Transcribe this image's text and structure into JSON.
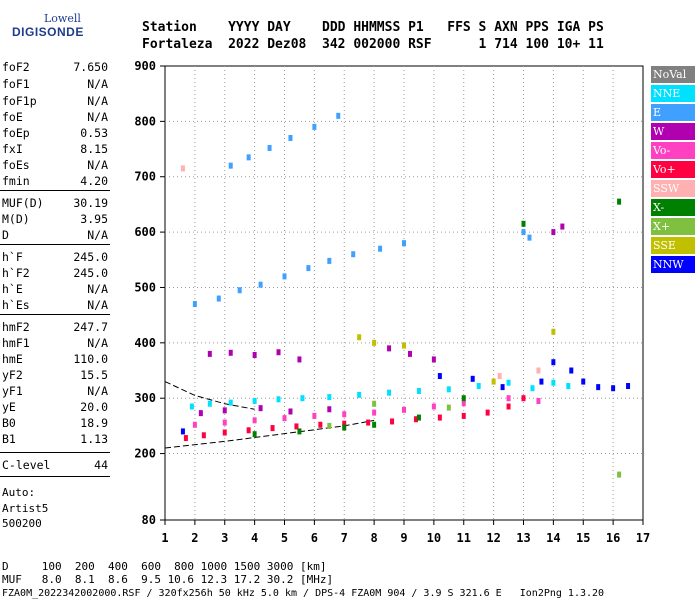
{
  "logo": {
    "top": "Lowell",
    "bottom": "DIGISONDE"
  },
  "header": {
    "line1": "Station    YYYY DAY    DDD HHMMSS P1   FFS S AXN PPS IGA PS",
    "line2": "Fortaleza  2022 Dez08  342 002000 RSF      1 714 100 10+ 11"
  },
  "side_params": [
    {
      "k": "foF2",
      "v": "7.650"
    },
    {
      "k": "foF1",
      "v": "N/A"
    },
    {
      "k": "foF1p",
      "v": "N/A"
    },
    {
      "k": "foE",
      "v": "N/A"
    },
    {
      "k": "foEp",
      "v": "0.53"
    },
    {
      "k": "fxI",
      "v": "8.15"
    },
    {
      "k": "foEs",
      "v": "N/A"
    },
    {
      "k": "fmin",
      "v": "4.20"
    },
    {
      "k": "MUF(D)",
      "v": "30.19"
    },
    {
      "k": "M(D)",
      "v": "3.95"
    },
    {
      "k": "D",
      "v": "N/A"
    },
    {
      "k": "h`F",
      "v": "245.0"
    },
    {
      "k": "h`F2",
      "v": "245.0"
    },
    {
      "k": "h`E",
      "v": "N/A"
    },
    {
      "k": "h`Es",
      "v": "N/A"
    },
    {
      "k": "hmF2",
      "v": "247.7"
    },
    {
      "k": "hmF1",
      "v": "N/A"
    },
    {
      "k": "hmE",
      "v": "110.0"
    },
    {
      "k": "yF2",
      "v": "15.5"
    },
    {
      "k": "yF1",
      "v": "N/A"
    },
    {
      "k": "yE",
      "v": "20.0"
    },
    {
      "k": "B0",
      "v": "18.9"
    },
    {
      "k": "B1",
      "v": "1.13"
    },
    {
      "k": "C-level",
      "v": "44"
    }
  ],
  "auto": {
    "l1": "Auto:",
    "l2": "Artist5",
    "l3": "500200"
  },
  "legend": [
    {
      "label": "NoVal",
      "color": "#808080"
    },
    {
      "label": "NNE",
      "color": "#00e0ff"
    },
    {
      "label": "E",
      "color": "#40a0ff"
    },
    {
      "label": "W",
      "color": "#b000b0"
    },
    {
      "label": "Vo-",
      "color": "#ff40c0"
    },
    {
      "label": "Vo+",
      "color": "#ff0040"
    },
    {
      "label": "SSW",
      "color": "#ffb0b0"
    },
    {
      "label": "X-",
      "color": "#008000"
    },
    {
      "label": "X+",
      "color": "#80c040"
    },
    {
      "label": "SSE",
      "color": "#c0c000"
    },
    {
      "label": "NNW",
      "color": "#0000ff"
    }
  ],
  "footer": {
    "line1": "D     100  200  400  600  800 1000 1500 3000 [km]",
    "line2": "MUF   8.0  8.1  8.6  9.5 10.6 12.3 17.2 30.2 [MHz]",
    "line3": "FZA0M_2022342002000.RSF / 320fx256h 50 kHz 5.0 km / DPS-4 FZA0M 904 / 3.9 S 321.6 E   Ion2Png 1.3.20"
  },
  "chart_data": {
    "type": "scatter",
    "xlim": [
      1,
      17
    ],
    "ylim": [
      80,
      900
    ],
    "xticks": [
      "1",
      "2",
      "3",
      "4",
      "5",
      "6",
      "7",
      "8",
      "9",
      "10",
      "11",
      "12",
      "13",
      "14",
      "15",
      "16",
      "17"
    ],
    "yticks": [
      "80",
      "200",
      "300",
      "400",
      "500",
      "600",
      "700",
      "800",
      "900"
    ],
    "grid": true,
    "series": [
      {
        "name": "NNE",
        "color": "#00e0ff",
        "points": [
          [
            1.9,
            285
          ],
          [
            2.5,
            290
          ],
          [
            3.2,
            292
          ],
          [
            4.0,
            295
          ],
          [
            4.8,
            298
          ],
          [
            5.6,
            300
          ],
          [
            6.5,
            302
          ],
          [
            7.5,
            306
          ],
          [
            8.5,
            310
          ],
          [
            9.5,
            313
          ],
          [
            10.5,
            316
          ],
          [
            11.5,
            322
          ],
          [
            12.5,
            328
          ],
          [
            13.3,
            318
          ],
          [
            14.0,
            328
          ],
          [
            14.5,
            322
          ]
        ]
      },
      {
        "name": "E",
        "color": "#40a0ff",
        "points": [
          [
            2.0,
            470
          ],
          [
            2.8,
            480
          ],
          [
            3.5,
            495
          ],
          [
            4.2,
            505
          ],
          [
            5.0,
            520
          ],
          [
            5.8,
            535
          ],
          [
            6.5,
            548
          ],
          [
            7.3,
            560
          ],
          [
            8.2,
            570
          ],
          [
            9.0,
            580
          ],
          [
            3.2,
            720
          ],
          [
            3.8,
            735
          ],
          [
            4.5,
            752
          ],
          [
            5.2,
            770
          ],
          [
            6.0,
            790
          ],
          [
            6.8,
            810
          ],
          [
            13.0,
            600
          ],
          [
            13.2,
            590
          ]
        ]
      },
      {
        "name": "W",
        "color": "#b000b0",
        "points": [
          [
            2.5,
            380
          ],
          [
            3.2,
            382
          ],
          [
            4.0,
            378
          ],
          [
            4.8,
            383
          ],
          [
            5.5,
            370
          ],
          [
            8.5,
            390
          ],
          [
            9.2,
            380
          ],
          [
            10.0,
            370
          ],
          [
            2.2,
            273
          ],
          [
            3.0,
            278
          ],
          [
            4.2,
            282
          ],
          [
            5.2,
            276
          ],
          [
            6.5,
            280
          ],
          [
            14.0,
            600
          ],
          [
            14.3,
            610
          ]
        ]
      },
      {
        "name": "Vo-",
        "color": "#ff40c0",
        "points": [
          [
            2.0,
            252
          ],
          [
            3.0,
            256
          ],
          [
            4.0,
            260
          ],
          [
            5.0,
            264
          ],
          [
            6.0,
            268
          ],
          [
            7.0,
            271
          ],
          [
            8.0,
            274
          ],
          [
            9.0,
            279
          ],
          [
            10.0,
            285
          ],
          [
            11.0,
            291
          ],
          [
            12.5,
            300
          ],
          [
            13.5,
            295
          ]
        ]
      },
      {
        "name": "Vo+",
        "color": "#ff0040",
        "points": [
          [
            1.7,
            228
          ],
          [
            2.3,
            233
          ],
          [
            3.0,
            238
          ],
          [
            3.8,
            242
          ],
          [
            4.6,
            246
          ],
          [
            5.4,
            249
          ],
          [
            6.2,
            252
          ],
          [
            7.0,
            254
          ],
          [
            7.8,
            256
          ],
          [
            8.6,
            258
          ],
          [
            9.4,
            262
          ],
          [
            10.2,
            265
          ],
          [
            11.0,
            268
          ],
          [
            11.8,
            274
          ],
          [
            12.5,
            285
          ],
          [
            13.0,
            300
          ]
        ]
      },
      {
        "name": "SSW",
        "color": "#ffb0b0",
        "points": [
          [
            1.6,
            715
          ],
          [
            12.2,
            340
          ],
          [
            13.5,
            350
          ]
        ]
      },
      {
        "name": "X-",
        "color": "#008000",
        "points": [
          [
            4.0,
            235
          ],
          [
            5.5,
            240
          ],
          [
            7.0,
            247
          ],
          [
            8.0,
            252
          ],
          [
            9.5,
            265
          ],
          [
            11.0,
            300
          ],
          [
            13.0,
            615
          ],
          [
            16.2,
            655
          ]
        ]
      },
      {
        "name": "X+",
        "color": "#80c040",
        "points": [
          [
            6.5,
            250
          ],
          [
            8.0,
            290
          ],
          [
            10.5,
            283
          ],
          [
            16.2,
            162
          ]
        ]
      },
      {
        "name": "SSE",
        "color": "#c0c000",
        "points": [
          [
            7.5,
            410
          ],
          [
            8.0,
            400
          ],
          [
            9.0,
            395
          ],
          [
            12.0,
            330
          ],
          [
            14.0,
            420
          ]
        ]
      },
      {
        "name": "NNW",
        "color": "#0000ff",
        "points": [
          [
            1.6,
            240
          ],
          [
            10.2,
            340
          ],
          [
            11.3,
            335
          ],
          [
            12.3,
            320
          ],
          [
            13.6,
            330
          ],
          [
            14.0,
            365
          ],
          [
            14.6,
            350
          ],
          [
            15.0,
            330
          ],
          [
            15.5,
            320
          ],
          [
            16.0,
            318
          ],
          [
            16.5,
            322
          ]
        ]
      }
    ]
  }
}
